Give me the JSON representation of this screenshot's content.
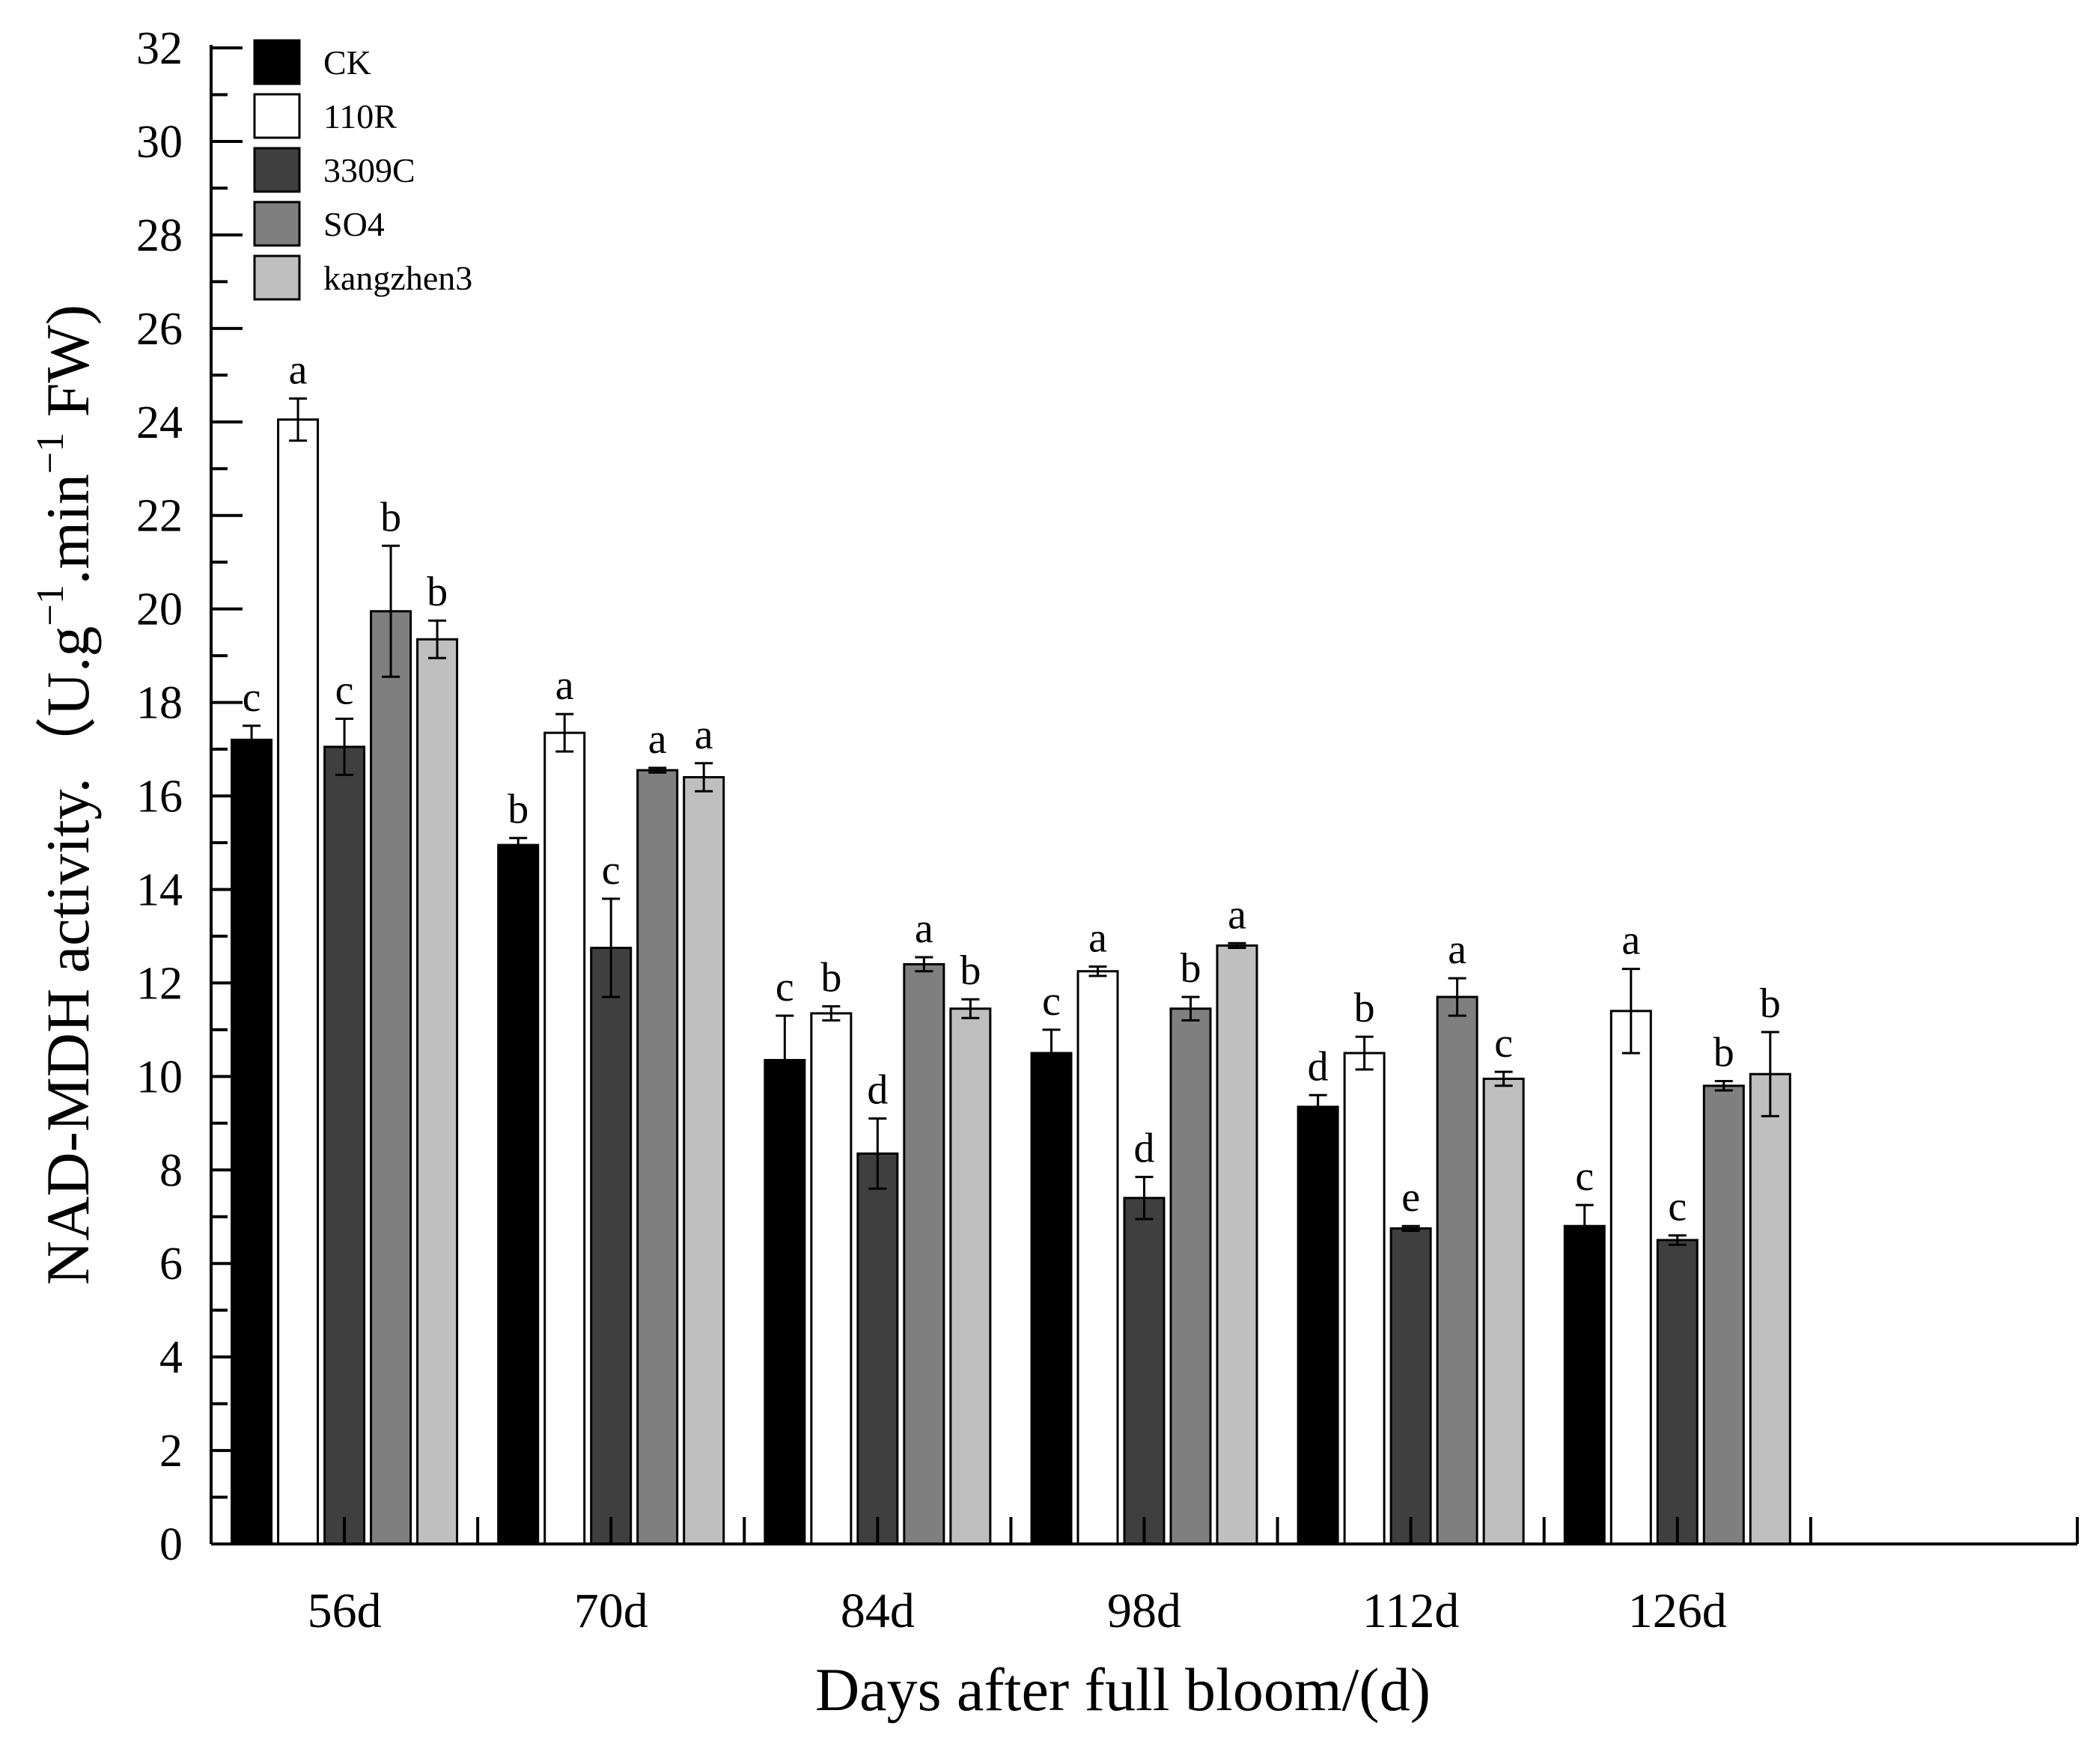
{
  "chart_data": {
    "type": "bar",
    "title": "",
    "xlabel": "Days after full bloom/(d)",
    "ylabel": {
      "main": "NAD-MDH activity.（U.g",
      "sup1": "−1",
      "mid": ".min",
      "sup2": "−1",
      "tail": " FW)"
    },
    "ylim": [
      0,
      32
    ],
    "y_ticks": [
      0,
      2,
      4,
      6,
      8,
      10,
      12,
      14,
      16,
      18,
      20,
      22,
      24,
      26,
      28,
      30,
      32
    ],
    "x_slots": 7,
    "categories": [
      "56d",
      "70d",
      "84d",
      "98d",
      "112d",
      "126d"
    ],
    "legend_position": "top-left",
    "series": [
      {
        "name": "CK",
        "color": "#000000",
        "values": [
          17.2,
          14.95,
          10.35,
          10.5,
          9.35,
          6.8
        ],
        "errors": [
          0.3,
          0.15,
          0.95,
          0.5,
          0.25,
          0.45
        ],
        "letters": [
          "c",
          "b",
          "c",
          "c",
          "d",
          "c"
        ]
      },
      {
        "name": "110R",
        "color": "#ffffff",
        "values": [
          24.05,
          17.35,
          11.35,
          12.25,
          10.5,
          11.4
        ],
        "errors": [
          0.45,
          0.4,
          0.15,
          0.1,
          0.35,
          0.9
        ],
        "letters": [
          "a",
          "a",
          "b",
          "a",
          "b",
          "a"
        ]
      },
      {
        "name": "3309C",
        "color": "#3f3f3f",
        "values": [
          17.05,
          12.75,
          8.35,
          7.4,
          6.75,
          6.5
        ],
        "errors": [
          0.6,
          1.05,
          0.75,
          0.45,
          0.05,
          0.1
        ],
        "letters": [
          "c",
          "c",
          "d",
          "d",
          "e",
          "c"
        ]
      },
      {
        "name": "SO4",
        "color": "#7f7f7f",
        "values": [
          19.95,
          16.55,
          12.4,
          11.45,
          11.7,
          9.8
        ],
        "errors": [
          1.4,
          0.05,
          0.15,
          0.25,
          0.4,
          0.1
        ],
        "letters": [
          "b",
          "a",
          "a",
          "b",
          "a",
          "b"
        ]
      },
      {
        "name": "kangzhen3",
        "color": "#bfbfbf",
        "values": [
          19.35,
          16.4,
          11.45,
          12.8,
          9.95,
          10.05
        ],
        "errors": [
          0.4,
          0.3,
          0.2,
          0.05,
          0.15,
          0.9
        ],
        "letters": [
          "b",
          "a",
          "b",
          "a",
          "c",
          "b"
        ]
      }
    ]
  }
}
